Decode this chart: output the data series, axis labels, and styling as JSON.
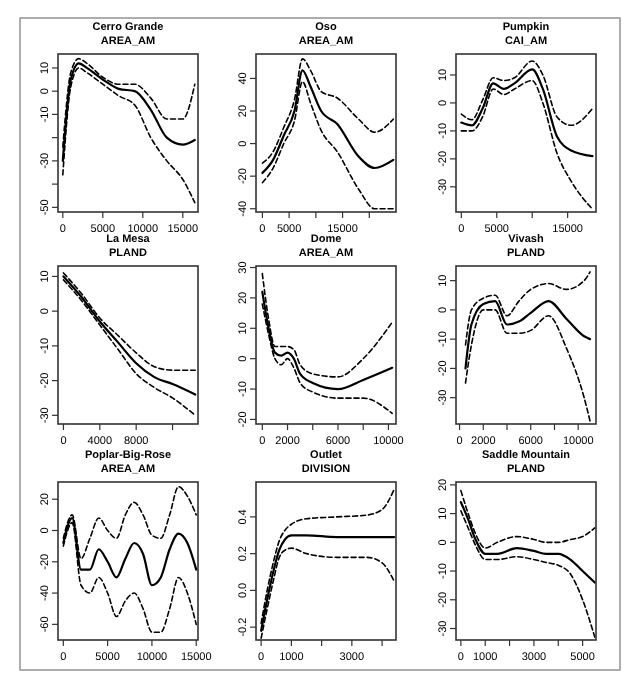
{
  "chart_data": [
    {
      "type": "line",
      "title": "Cerro Grande",
      "subtitle": "AREA_AM",
      "xlim": [
        -600,
        16900
      ],
      "ylim": [
        -52,
        16
      ],
      "xticks": [
        0,
        5000,
        10000,
        15000
      ],
      "yticks": [
        10,
        0,
        -10,
        {
          "value": -20,
          "label": null
        },
        -30,
        {
          "value": -40,
          "label": null
        },
        -50
      ],
      "series": [
        {
          "color": "#000000",
          "line_style": "solid",
          "x": [
            0,
            1000,
            2000,
            3000,
            5000,
            7000,
            9000,
            11000,
            13000,
            15000,
            16500
          ],
          "values": [
            -30,
            5,
            12,
            10,
            5,
            1,
            0,
            -8,
            -20,
            -23,
            -21
          ]
        },
        {
          "color": "#000000",
          "line_style": "dashed",
          "x": [
            0,
            1000,
            2000,
            3000,
            5000,
            7000,
            9000,
            11000,
            13000,
            15000,
            16500
          ],
          "values": [
            -24,
            8,
            14,
            12,
            6,
            3,
            3,
            -3,
            -12,
            -12,
            3
          ]
        },
        {
          "color": "#000000",
          "line_style": "dashed",
          "x": [
            0,
            1000,
            2000,
            3000,
            5000,
            7000,
            9000,
            11000,
            13000,
            15000,
            16500
          ],
          "values": [
            -36,
            2,
            10,
            8,
            3,
            -2,
            -6,
            -20,
            -30,
            -38,
            -48
          ]
        }
      ]
    },
    {
      "type": "line",
      "title": "Oso",
      "subtitle": "AREA_AM",
      "xlim": [
        -1200,
        25000
      ],
      "ylim": [
        -42,
        55
      ],
      "xticks": [
        0,
        5000,
        {
          "value": 10000,
          "label": null
        },
        15000,
        {
          "value": 20000,
          "label": null
        }
      ],
      "yticks": [
        40,
        20,
        0,
        -20,
        -40
      ],
      "series": [
        {
          "color": "#000000",
          "line_style": "solid",
          "x": [
            0,
            2000,
            4000,
            6000,
            7500,
            9000,
            11000,
            14000,
            18000,
            21000,
            24500
          ],
          "values": [
            -18,
            -10,
            5,
            20,
            45,
            35,
            20,
            12,
            -8,
            -15,
            -10
          ]
        },
        {
          "color": "#000000",
          "line_style": "dashed",
          "x": [
            0,
            2000,
            4000,
            6000,
            7500,
            9000,
            11000,
            14000,
            18000,
            21000,
            24500
          ],
          "values": [
            -12,
            -5,
            10,
            27,
            52,
            45,
            32,
            28,
            15,
            7,
            15
          ]
        },
        {
          "color": "#000000",
          "line_style": "dashed",
          "x": [
            0,
            2000,
            4000,
            6000,
            7500,
            9000,
            11000,
            14000,
            18000,
            21000,
            24500
          ],
          "values": [
            -24,
            -15,
            0,
            14,
            38,
            25,
            8,
            -5,
            -28,
            -40,
            -40
          ]
        }
      ]
    },
    {
      "type": "line",
      "title": "Pumpkin",
      "subtitle": "CAI_AM",
      "xlim": [
        -750,
        19000
      ],
      "ylim": [
        -39,
        17.5
      ],
      "xticks": [
        0,
        5000,
        {
          "value": 10000,
          "label": null
        },
        15000
      ],
      "yticks": [
        10,
        0,
        -10,
        -20,
        -30
      ],
      "series": [
        {
          "color": "#000000",
          "line_style": "solid",
          "x": [
            0,
            1500,
            3000,
            4500,
            6000,
            7500,
            10000,
            11500,
            13500,
            15500,
            18500
          ],
          "values": [
            -7,
            -8,
            -2,
            7,
            5,
            7,
            12,
            5,
            -12,
            -17,
            -19
          ]
        },
        {
          "color": "#000000",
          "line_style": "dashed",
          "x": [
            0,
            1500,
            3000,
            4500,
            6000,
            7500,
            10000,
            11500,
            13500,
            15500,
            18500
          ],
          "values": [
            -4,
            -6,
            1,
            9,
            8,
            9,
            15,
            10,
            -5,
            -8,
            -2
          ]
        },
        {
          "color": "#000000",
          "line_style": "dashed",
          "x": [
            0,
            1500,
            3000,
            4500,
            6000,
            7500,
            10000,
            11500,
            13500,
            15500,
            18500
          ],
          "values": [
            -10,
            -10,
            -5,
            5,
            3,
            5,
            8,
            0,
            -18,
            -28,
            -38
          ]
        }
      ]
    },
    {
      "type": "line",
      "title": "La Mesa",
      "subtitle": "PLAND",
      "xlim": [
        -600,
        14800
      ],
      "ylim": [
        -32.5,
        13
      ],
      "xticks": [
        0,
        4000,
        8000,
        {
          "value": 12000,
          "label": null
        }
      ],
      "yticks": [
        10,
        0,
        -10,
        -20,
        -30
      ],
      "series": [
        {
          "color": "#000000",
          "line_style": "solid",
          "x": [
            0,
            2000,
            4000,
            6000,
            8000,
            10000,
            12000,
            14500
          ],
          "values": [
            10,
            4,
            -3,
            -9,
            -15,
            -19,
            -21,
            -24
          ]
        },
        {
          "color": "#000000",
          "line_style": "dashed",
          "x": [
            0,
            2000,
            4000,
            6000,
            8000,
            10000,
            12000,
            14500
          ],
          "values": [
            11,
            5,
            -2,
            -7,
            -12,
            -16,
            -17,
            -17
          ]
        },
        {
          "color": "#000000",
          "line_style": "dashed",
          "x": [
            0,
            2000,
            4000,
            6000,
            8000,
            10000,
            12000,
            14500
          ],
          "values": [
            9,
            3,
            -4,
            -11,
            -18,
            -22,
            -25,
            -30
          ]
        }
      ]
    },
    {
      "type": "line",
      "title": "Dome",
      "subtitle": "AREA_AM",
      "xlim": [
        -500,
        10600
      ],
      "ylim": [
        -21.5,
        30.5
      ],
      "xticks": [
        0,
        2000,
        {
          "value": 4000,
          "label": null
        },
        6000,
        {
          "value": 8000,
          "label": null
        },
        10000
      ],
      "yticks": [
        30,
        20,
        10,
        0,
        -10,
        -20
      ],
      "series": [
        {
          "color": "#000000",
          "line_style": "solid",
          "x": [
            0,
            500,
            1000,
            1500,
            2000,
            2500,
            3000,
            4000,
            6000,
            8000,
            10300
          ],
          "values": [
            22,
            10,
            2,
            1,
            2,
            0,
            -5,
            -8,
            -10,
            -7,
            -3
          ]
        },
        {
          "color": "#000000",
          "line_style": "dashed",
          "x": [
            0,
            500,
            1000,
            1500,
            2000,
            2500,
            3000,
            4000,
            6000,
            8000,
            10300
          ],
          "values": [
            28,
            13,
            4,
            4,
            4,
            3,
            -2,
            -5,
            -6,
            0,
            12
          ]
        },
        {
          "color": "#000000",
          "line_style": "dashed",
          "x": [
            0,
            500,
            1000,
            1500,
            2000,
            2500,
            3000,
            4000,
            6000,
            8000,
            10300
          ],
          "values": [
            18,
            8,
            0,
            -2,
            0,
            -3,
            -8,
            -11,
            -13,
            -13,
            -18
          ]
        }
      ]
    },
    {
      "type": "line",
      "title": "Vivash",
      "subtitle": "PLAND",
      "xlim": [
        -300,
        11500
      ],
      "ylim": [
        -39,
        15
      ],
      "xticks": [
        0,
        2000,
        {
          "value": 4000,
          "label": null
        },
        6000,
        {
          "value": 8000,
          "label": null
        },
        10000
      ],
      "yticks": [
        10,
        0,
        -10,
        -20,
        -30
      ],
      "series": [
        {
          "color": "#000000",
          "line_style": "solid",
          "x": [
            500,
            1000,
            2000,
            3000,
            4000,
            5000,
            6000,
            7500,
            9000,
            10500,
            11000
          ],
          "values": [
            -20,
            -5,
            2,
            3,
            -5,
            -4,
            -1,
            3,
            -3,
            -9,
            -10
          ]
        },
        {
          "color": "#000000",
          "line_style": "dashed",
          "x": [
            500,
            1000,
            2000,
            3000,
            4000,
            5000,
            6000,
            7500,
            9000,
            10500,
            11000
          ],
          "values": [
            -12,
            0,
            4,
            5,
            -2,
            3,
            7,
            9,
            7,
            10,
            13
          ]
        },
        {
          "color": "#000000",
          "line_style": "dashed",
          "x": [
            500,
            1000,
            2000,
            3000,
            4000,
            5000,
            6000,
            7500,
            9000,
            10500,
            11000
          ],
          "values": [
            -25,
            -12,
            0,
            0,
            -8,
            -8,
            -7,
            -2,
            -13,
            -30,
            -38
          ]
        }
      ]
    },
    {
      "type": "line",
      "title": "Poplar-Big-Rose",
      "subtitle": "AREA_AM",
      "xlim": [
        -600,
        15200
      ],
      "ylim": [
        -70,
        31
      ],
      "xticks": [
        0,
        5000,
        10000,
        15000
      ],
      "yticks": [
        20,
        0,
        -20,
        -40,
        -60
      ],
      "series": [
        {
          "color": "#000000",
          "line_style": "solid",
          "x": [
            0,
            1000,
            2000,
            3000,
            4000,
            5000,
            6000,
            7000,
            8000,
            9000,
            10000,
            11000,
            12000,
            13000,
            14000,
            15000
          ],
          "values": [
            -8,
            8,
            -25,
            -25,
            -12,
            -20,
            -30,
            -18,
            -8,
            -15,
            -35,
            -30,
            -12,
            -2,
            -8,
            -25
          ]
        },
        {
          "color": "#000000",
          "line_style": "dashed",
          "x": [
            0,
            1000,
            2000,
            3000,
            4000,
            5000,
            6000,
            7000,
            8000,
            9000,
            10000,
            11000,
            12000,
            13000,
            14000,
            15000
          ],
          "values": [
            -5,
            10,
            -18,
            -5,
            8,
            0,
            -5,
            10,
            18,
            10,
            -3,
            -5,
            10,
            28,
            22,
            10
          ]
        },
        {
          "color": "#000000",
          "line_style": "dashed",
          "x": [
            0,
            1000,
            2000,
            3000,
            4000,
            5000,
            6000,
            7000,
            8000,
            9000,
            10000,
            11000,
            12000,
            13000,
            14000,
            15000
          ],
          "values": [
            -10,
            5,
            -35,
            -40,
            -30,
            -40,
            -55,
            -45,
            -40,
            -50,
            -65,
            -65,
            -50,
            -30,
            -40,
            -60
          ]
        }
      ]
    },
    {
      "type": "line",
      "title": "Outlet",
      "subtitle": "DIVISION",
      "xlim": [
        -170,
        4460
      ],
      "ylim": [
        -0.27,
        0.59
      ],
      "xticks": [
        0,
        1000,
        {
          "value": 2000,
          "label": null
        },
        3000,
        {
          "value": 4000,
          "label": null
        }
      ],
      "yticks": [
        0.4,
        0.2,
        "0.0",
        -0.2
      ],
      "series": [
        {
          "color": "#000000",
          "line_style": "solid",
          "x": [
            0,
            200,
            400,
            600,
            800,
            1000,
            1500,
            2500,
            3500,
            4000,
            4400
          ],
          "values": [
            -0.22,
            -0.05,
            0.1,
            0.22,
            0.28,
            0.3,
            0.3,
            0.29,
            0.29,
            0.29,
            0.29
          ]
        },
        {
          "color": "#000000",
          "line_style": "dashed",
          "x": [
            0,
            200,
            400,
            600,
            800,
            1000,
            1500,
            2500,
            3500,
            4000,
            4400
          ],
          "values": [
            -0.18,
            0,
            0.15,
            0.27,
            0.33,
            0.36,
            0.39,
            0.4,
            0.41,
            0.44,
            0.55
          ]
        },
        {
          "color": "#000000",
          "line_style": "dashed",
          "x": [
            0,
            200,
            400,
            600,
            800,
            1000,
            1500,
            2500,
            3500,
            4000,
            4400
          ],
          "values": [
            -0.26,
            -0.1,
            0.05,
            0.18,
            0.22,
            0.23,
            0.2,
            0.18,
            0.18,
            0.15,
            0.05
          ]
        }
      ]
    },
    {
      "type": "line",
      "title": "Saddle Mountain",
      "subtitle": "PLAND",
      "xlim": [
        -200,
        5550
      ],
      "ylim": [
        -34,
        21
      ],
      "xticks": [
        0,
        1000,
        {
          "value": 2000,
          "label": null
        },
        3000,
        {
          "value": 4000,
          "label": null
        },
        5000
      ],
      "yticks": [
        20,
        10,
        0,
        -10,
        -20,
        -30
      ],
      "series": [
        {
          "color": "#000000",
          "line_style": "solid",
          "x": [
            0,
            300,
            600,
            1000,
            1500,
            2300,
            3000,
            3500,
            4000,
            4500,
            5000,
            5500
          ],
          "values": [
            14,
            8,
            1,
            -4,
            -4,
            -2,
            -3,
            -4,
            -4,
            -6,
            -10,
            -14
          ]
        },
        {
          "color": "#000000",
          "line_style": "dashed",
          "x": [
            0,
            300,
            600,
            1000,
            1500,
            2300,
            3000,
            3500,
            4000,
            4500,
            5000,
            5500
          ],
          "values": [
            18,
            10,
            3,
            -2,
            0,
            2,
            1,
            0,
            0,
            1,
            2,
            5
          ]
        },
        {
          "color": "#000000",
          "line_style": "dashed",
          "x": [
            0,
            300,
            600,
            1000,
            1500,
            2300,
            3000,
            3500,
            4000,
            4500,
            5000,
            5500
          ],
          "values": [
            11,
            5,
            -1,
            -6,
            -6,
            -5,
            -6,
            -7,
            -8,
            -11,
            -20,
            -33
          ]
        }
      ]
    }
  ]
}
